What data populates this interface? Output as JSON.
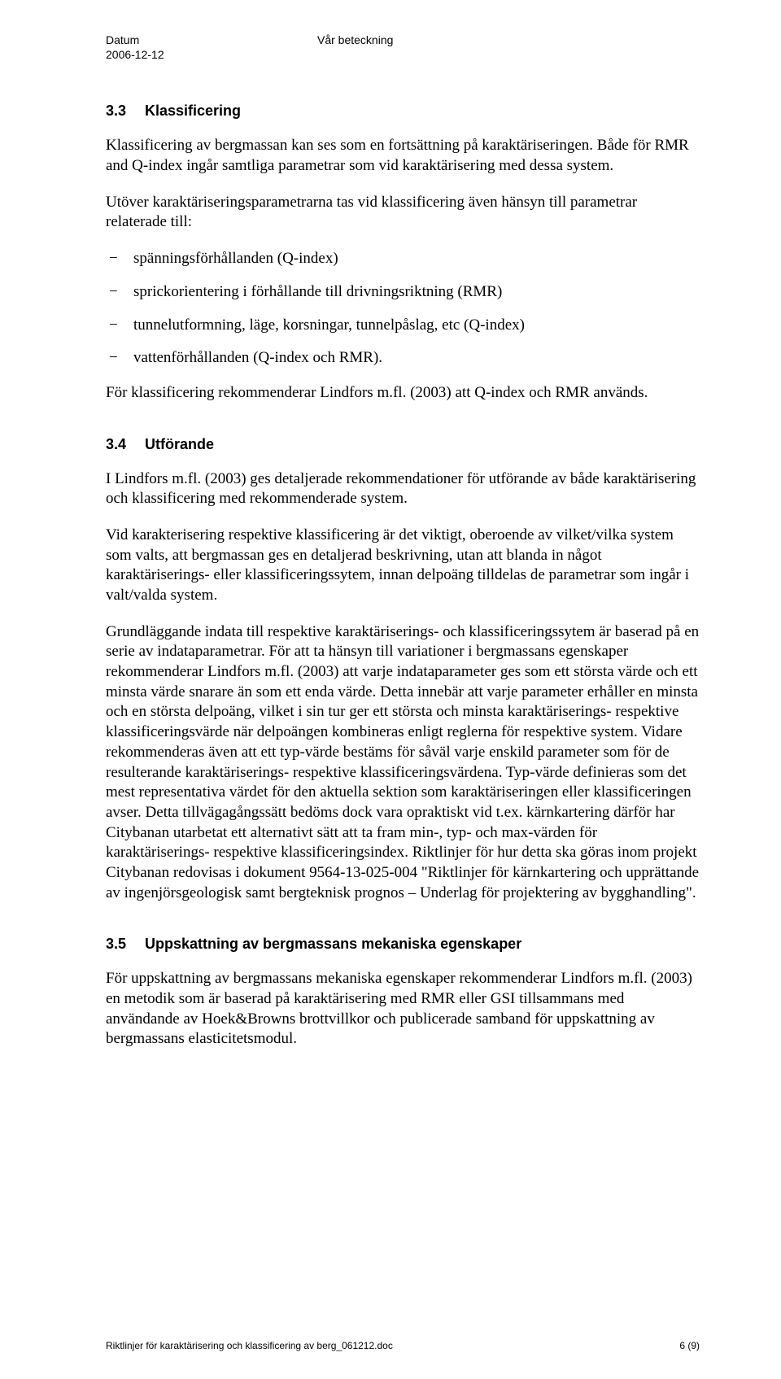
{
  "header": {
    "datum_label": "Datum",
    "datum_value": "2006-12-12",
    "beteckning_label": "Vår beteckning"
  },
  "s33": {
    "num": "3.3",
    "title": "Klassificering",
    "p1": "Klassificering av bergmassan kan ses som en fortsättning på karaktäriseringen. Både för RMR and Q-index ingår samtliga parametrar som vid karaktärisering med dessa system.",
    "p2": "Utöver karaktäriseringsparametrarna tas vid klassificering även hänsyn till parametrar relaterade till:",
    "bullets": [
      "spänningsförhållanden (Q-index)",
      "sprickorientering i förhållande till drivningsriktning (RMR)",
      "tunnelutformning, läge, korsningar, tunnelpåslag, etc (Q-index)",
      "vattenförhållanden (Q-index och RMR)."
    ],
    "p3": "För klassificering rekommenderar Lindfors m.fl. (2003) att Q-index och RMR används."
  },
  "s34": {
    "num": "3.4",
    "title": "Utförande",
    "p1": "I Lindfors m.fl. (2003) ges detaljerade rekommendationer för utförande av både karaktärisering och klassificering med rekommenderade system.",
    "p2": "Vid karakterisering respektive klassificering är det viktigt, oberoende av vilket/vilka system som valts, att bergmassan ges en detaljerad beskrivning, utan att blanda in något karaktäriserings- eller klassificeringssytem, innan delpoäng tilldelas de parametrar som ingår i valt/valda system.",
    "p3": "Grundläggande indata till respektive karaktäriserings- och klassificeringssytem är baserad på en serie av indataparametrar. För att ta hänsyn till variationer i bergmassans egenskaper rekommenderar Lindfors m.fl. (2003) att varje indataparameter ges som ett största värde och ett minsta värde snarare än som ett enda värde. Detta innebär att varje parameter erhåller en minsta och en största delpoäng, vilket i sin tur ger ett största och minsta karaktäriserings- respektive klassificeringsvärde när delpoängen kombineras enligt reglerna för respektive system. Vidare rekommenderas även att ett typ-värde bestäms för såväl varje enskild parameter som för de resulterande karaktäriserings- respektive klassificeringsvärdena. Typ-värde definieras som det mest representativa värdet för den aktuella sektion som karaktäriseringen eller klassificeringen avser. Detta tillvägagångssätt bedöms dock vara opraktiskt vid t.ex. kärnkartering därför har Citybanan utarbetat ett alternativt sätt att ta fram min-, typ- och max-värden för karaktäriserings- respektive klassificeringsindex. Riktlinjer för hur detta ska göras inom projekt Citybanan redovisas i dokument 9564-13-025-004 \"Riktlinjer för kärnkartering och upprättande av ingenjörsgeologisk samt bergteknisk prognos – Underlag för projektering av bygghandling\"."
  },
  "s35": {
    "num": "3.5",
    "title": "Uppskattning av bergmassans mekaniska egenskaper",
    "p1": "För uppskattning av bergmassans mekaniska egenskaper rekommenderar Lindfors m.fl. (2003) en metodik som är baserad på karaktärisering med RMR eller GSI tillsammans med användande av Hoek&Browns brottvillkor och publicerade samband för uppskattning av bergmassans elasticitetsmodul."
  },
  "footer": {
    "left": "Riktlinjer för karaktärisering och klassificering av berg_061212.doc",
    "right": "6 (9)"
  }
}
